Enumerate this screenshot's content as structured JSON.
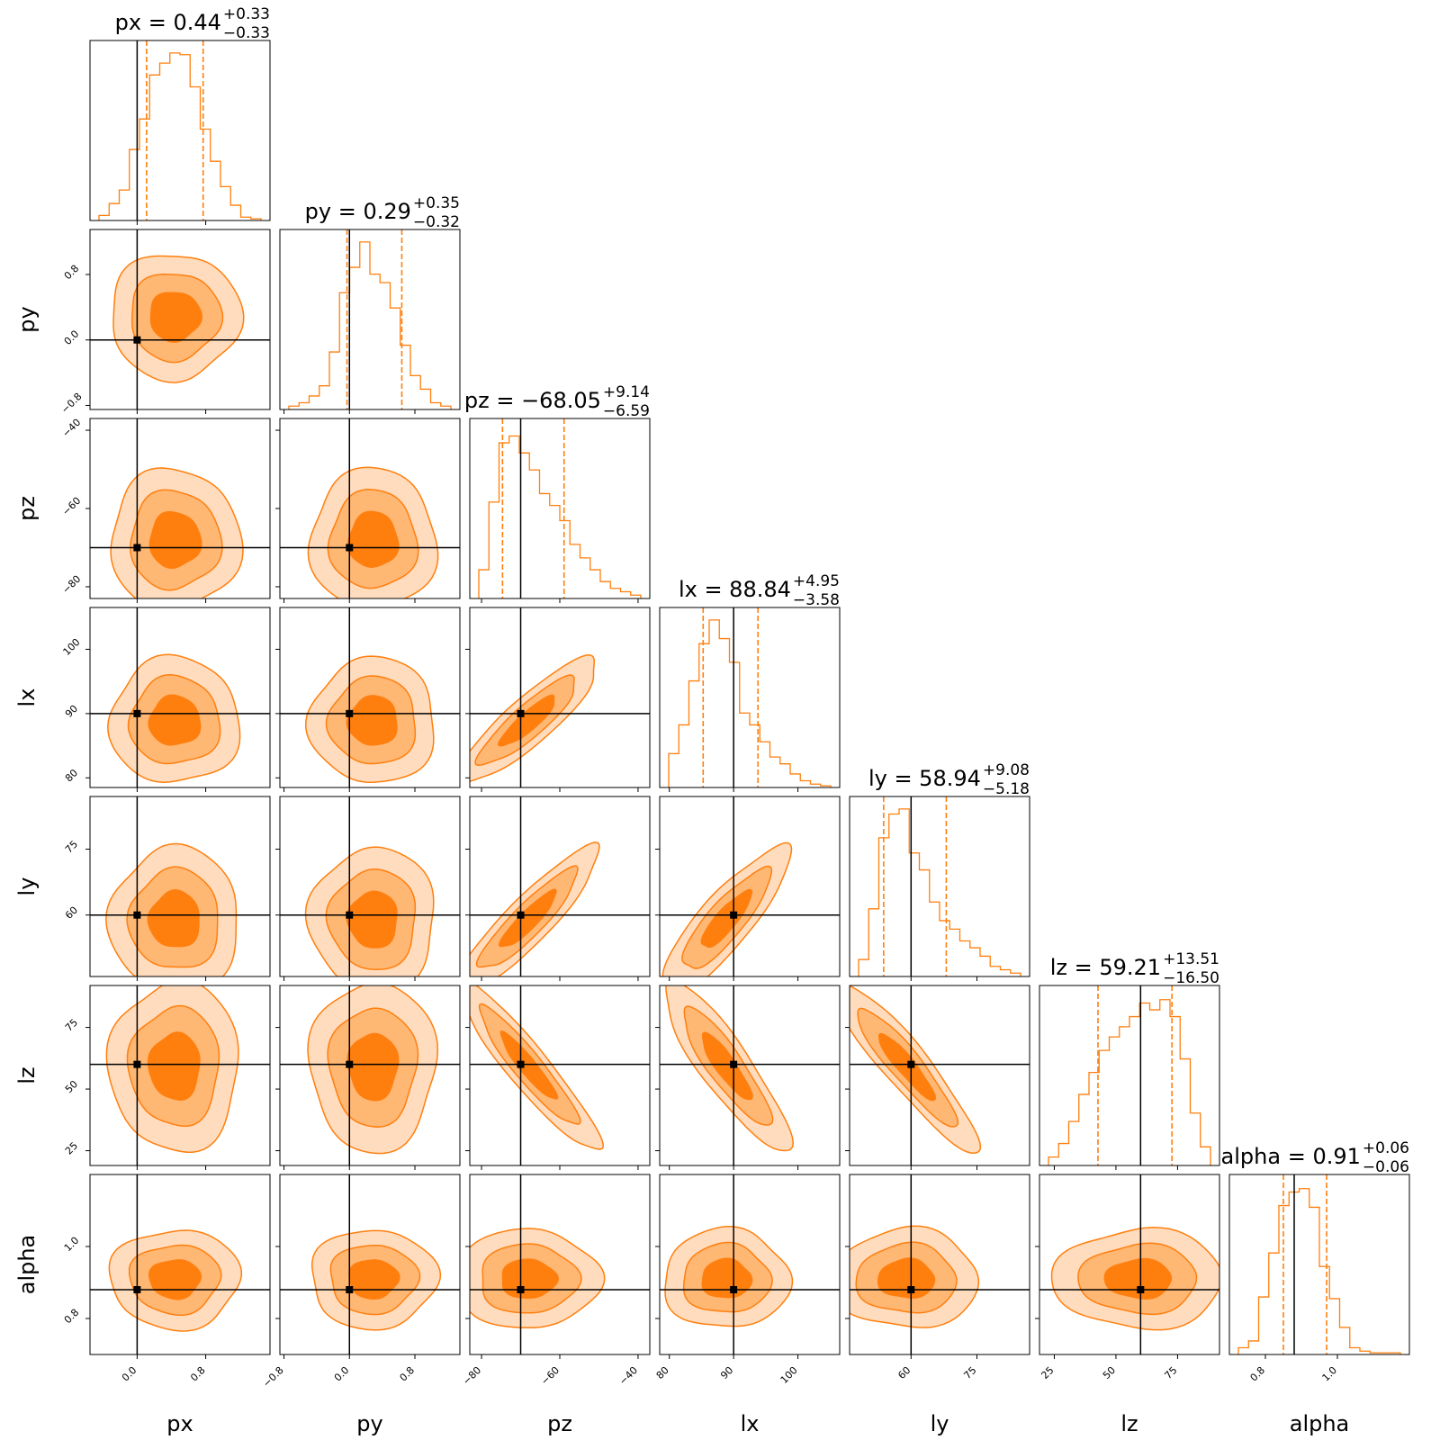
{
  "chart_data": {
    "type": "corner",
    "parameters": [
      "px",
      "py",
      "pz",
      "lx",
      "ly",
      "lz",
      "alpha"
    ],
    "axis_labels": [
      "px",
      "py",
      "pz",
      "lx",
      "ly",
      "lz",
      "alpha"
    ],
    "truths": [
      0.0,
      0.0,
      -70.0,
      90.0,
      60.0,
      60.0,
      0.88
    ],
    "ranges": [
      [
        -0.55,
        1.55
      ],
      [
        -0.85,
        1.35
      ],
      [
        -83,
        -37
      ],
      [
        78.5,
        106.5
      ],
      [
        46,
        87
      ],
      [
        19,
        92
      ],
      [
        0.7,
        1.2
      ]
    ],
    "ticks": [
      {
        "values": [
          0.0,
          0.8
        ],
        "labels": [
          "0.0",
          "0.8"
        ]
      },
      {
        "values": [
          -0.8,
          0.0,
          0.8
        ],
        "labels": [
          "−0.8",
          "0.0",
          "0.8"
        ]
      },
      {
        "values": [
          -80,
          -60,
          -40
        ],
        "labels": [
          "−80",
          "−60",
          "−40"
        ]
      },
      {
        "values": [
          80,
          90,
          100
        ],
        "labels": [
          "80",
          "90",
          "100"
        ]
      },
      {
        "values": [
          60,
          75
        ],
        "labels": [
          "60",
          "75"
        ]
      },
      {
        "values": [
          25,
          50,
          75
        ],
        "labels": [
          "25",
          "50",
          "75"
        ]
      },
      {
        "values": [
          0.8,
          1.0
        ],
        "labels": [
          "0.8",
          "1.0"
        ]
      }
    ],
    "titles": [
      {
        "main": "px = 0.44",
        "plus": "+0.33",
        "minus": "−0.33"
      },
      {
        "main": "py = 0.29",
        "plus": "+0.35",
        "minus": "−0.32"
      },
      {
        "main": "pz = −68.05",
        "plus": "+9.14",
        "minus": "−6.59"
      },
      {
        "main": "lx = 88.84",
        "plus": "+4.95",
        "minus": "−3.58"
      },
      {
        "main": "ly = 58.94",
        "plus": "+9.08",
        "minus": "−5.18"
      },
      {
        "main": "lz = 59.21",
        "plus": "+13.51",
        "minus": "−16.50"
      },
      {
        "main": "alpha = 0.91",
        "plus": "+0.06",
        "minus": "−0.06"
      }
    ],
    "medians": [
      0.44,
      0.29,
      -68.05,
      88.84,
      58.94,
      59.21,
      0.91
    ],
    "quantiles_16_84": [
      [
        0.11,
        0.77
      ],
      [
        -0.03,
        0.64
      ],
      [
        -74.64,
        -58.91
      ],
      [
        85.26,
        93.79
      ],
      [
        53.76,
        68.02
      ],
      [
        42.71,
        72.72
      ],
      [
        0.85,
        0.97
      ]
    ],
    "histograms": [
      [
        0.03,
        0.1,
        0.18,
        0.42,
        0.6,
        0.86,
        0.93,
        0.99,
        0.98,
        0.79,
        0.54,
        0.35,
        0.2,
        0.09,
        0.02,
        0.01
      ],
      [
        0.02,
        0.04,
        0.08,
        0.14,
        0.34,
        0.69,
        0.84,
        0.99,
        0.8,
        0.75,
        0.6,
        0.38,
        0.2,
        0.12,
        0.04,
        0.02
      ],
      [
        0.17,
        0.57,
        0.92,
        0.96,
        0.86,
        0.76,
        0.62,
        0.55,
        0.46,
        0.32,
        0.24,
        0.17,
        0.1,
        0.06,
        0.04,
        0.02
      ],
      [
        0.2,
        0.37,
        0.63,
        0.85,
        0.99,
        0.88,
        0.74,
        0.44,
        0.37,
        0.27,
        0.18,
        0.14,
        0.08,
        0.04,
        0.02,
        0.01
      ],
      [
        0.1,
        0.4,
        0.82,
        0.96,
        0.99,
        0.73,
        0.63,
        0.44,
        0.33,
        0.28,
        0.21,
        0.17,
        0.12,
        0.06,
        0.04,
        0.02
      ],
      [
        0.05,
        0.13,
        0.26,
        0.42,
        0.55,
        0.68,
        0.76,
        0.82,
        0.88,
        0.96,
        0.92,
        0.98,
        0.88,
        0.63,
        0.31,
        0.11
      ],
      [
        0.04,
        0.08,
        0.34,
        0.6,
        0.88,
        0.96,
        0.98,
        0.87,
        0.52,
        0.33,
        0.16,
        0.04,
        0.02,
        0.01,
        0.01,
        0.01
      ]
    ],
    "correlations": {
      "2-3": 0.88,
      "2-4": 0.9,
      "3-4": 0.85,
      "2-5": -0.93,
      "3-5": -0.88,
      "4-5": -0.92
    },
    "contour_levels": [
      0.39,
      0.86,
      0.99
    ],
    "colors": {
      "hist": "#ff7f0e",
      "fill": [
        "#ffdcbd",
        "#ffb774",
        "#ff7f0e"
      ],
      "truth": "#000000",
      "frame": "#000000"
    }
  }
}
